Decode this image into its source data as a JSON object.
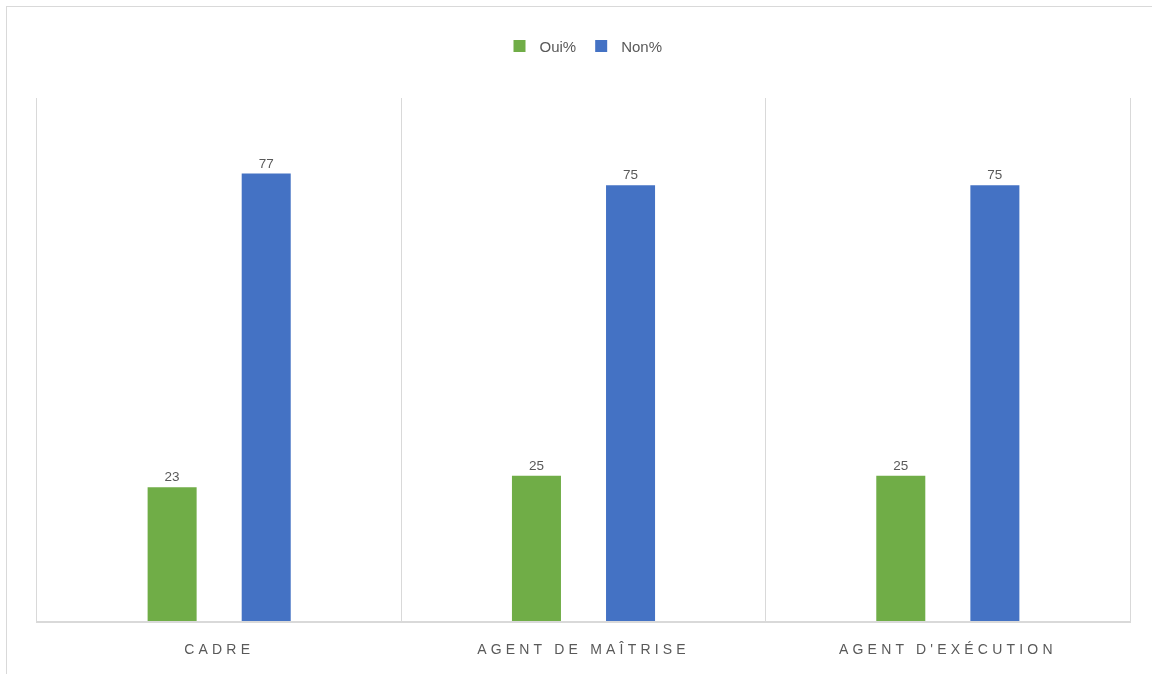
{
  "chart_data": {
    "type": "bar",
    "categories": [
      "CADRE",
      "AGENT DE MAÎTRISE",
      "AGENT D'EXÉCUTION"
    ],
    "series": [
      {
        "name": "Oui%",
        "color": "#70ad47",
        "values": [
          23,
          25,
          25
        ]
      },
      {
        "name": "Non%",
        "color": "#4472c4",
        "values": [
          77,
          75,
          75
        ]
      }
    ],
    "ylim": [
      0,
      90
    ],
    "data_labels": true,
    "grid": "x",
    "legend": "top",
    "tick_labels": "x"
  }
}
